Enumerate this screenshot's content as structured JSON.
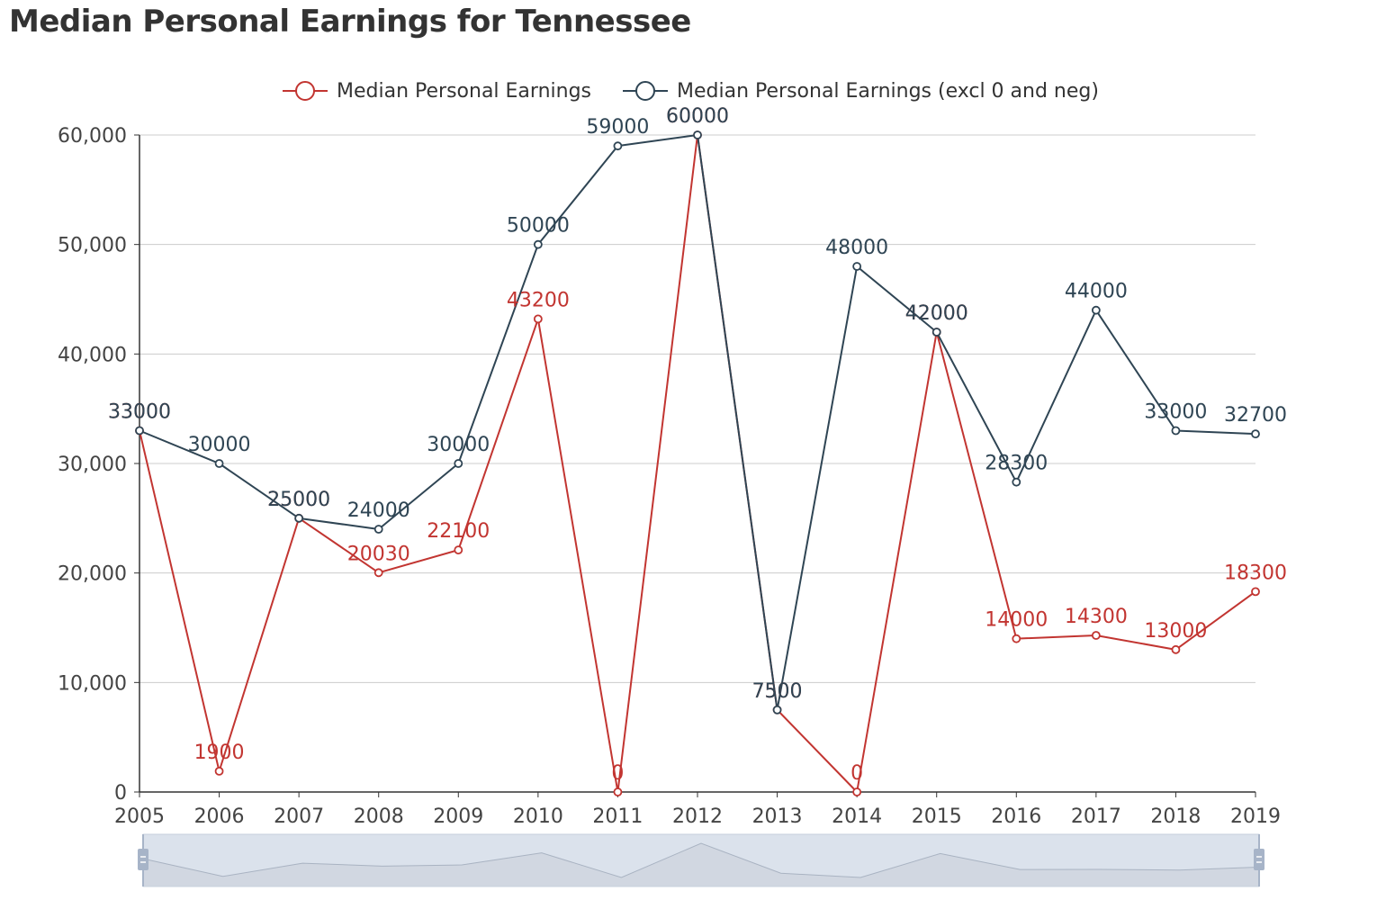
{
  "title": "Median Personal Earnings for Tennessee",
  "chart_data": {
    "type": "line",
    "title": "Median Personal Earnings for Tennessee",
    "categories": [
      "2005",
      "2006",
      "2007",
      "2008",
      "2009",
      "2010",
      "2011",
      "2012",
      "2013",
      "2014",
      "2015",
      "2016",
      "2017",
      "2018",
      "2019"
    ],
    "series": [
      {
        "name": "Median Personal Earnings",
        "color": "#c23531",
        "values": [
          33000,
          1900,
          25000,
          20030,
          22100,
          43200,
          0,
          60000,
          7500,
          0,
          42000,
          14000,
          14300,
          13000,
          18300
        ]
      },
      {
        "name": "Median Personal Earnings (excl 0 and neg)",
        "color": "#2f4554",
        "values": [
          33000,
          30000,
          25000,
          24000,
          30000,
          50000,
          59000,
          60000,
          7500,
          48000,
          42000,
          28300,
          44000,
          33000,
          32700
        ]
      }
    ],
    "ylim": [
      0,
      60000
    ],
    "yticks": [
      "0",
      "10,000",
      "20,000",
      "30,000",
      "40,000",
      "50,000",
      "60,000"
    ],
    "grid": true,
    "legend": "top-center",
    "data_zoom": {
      "start": 0,
      "end": 100
    }
  }
}
